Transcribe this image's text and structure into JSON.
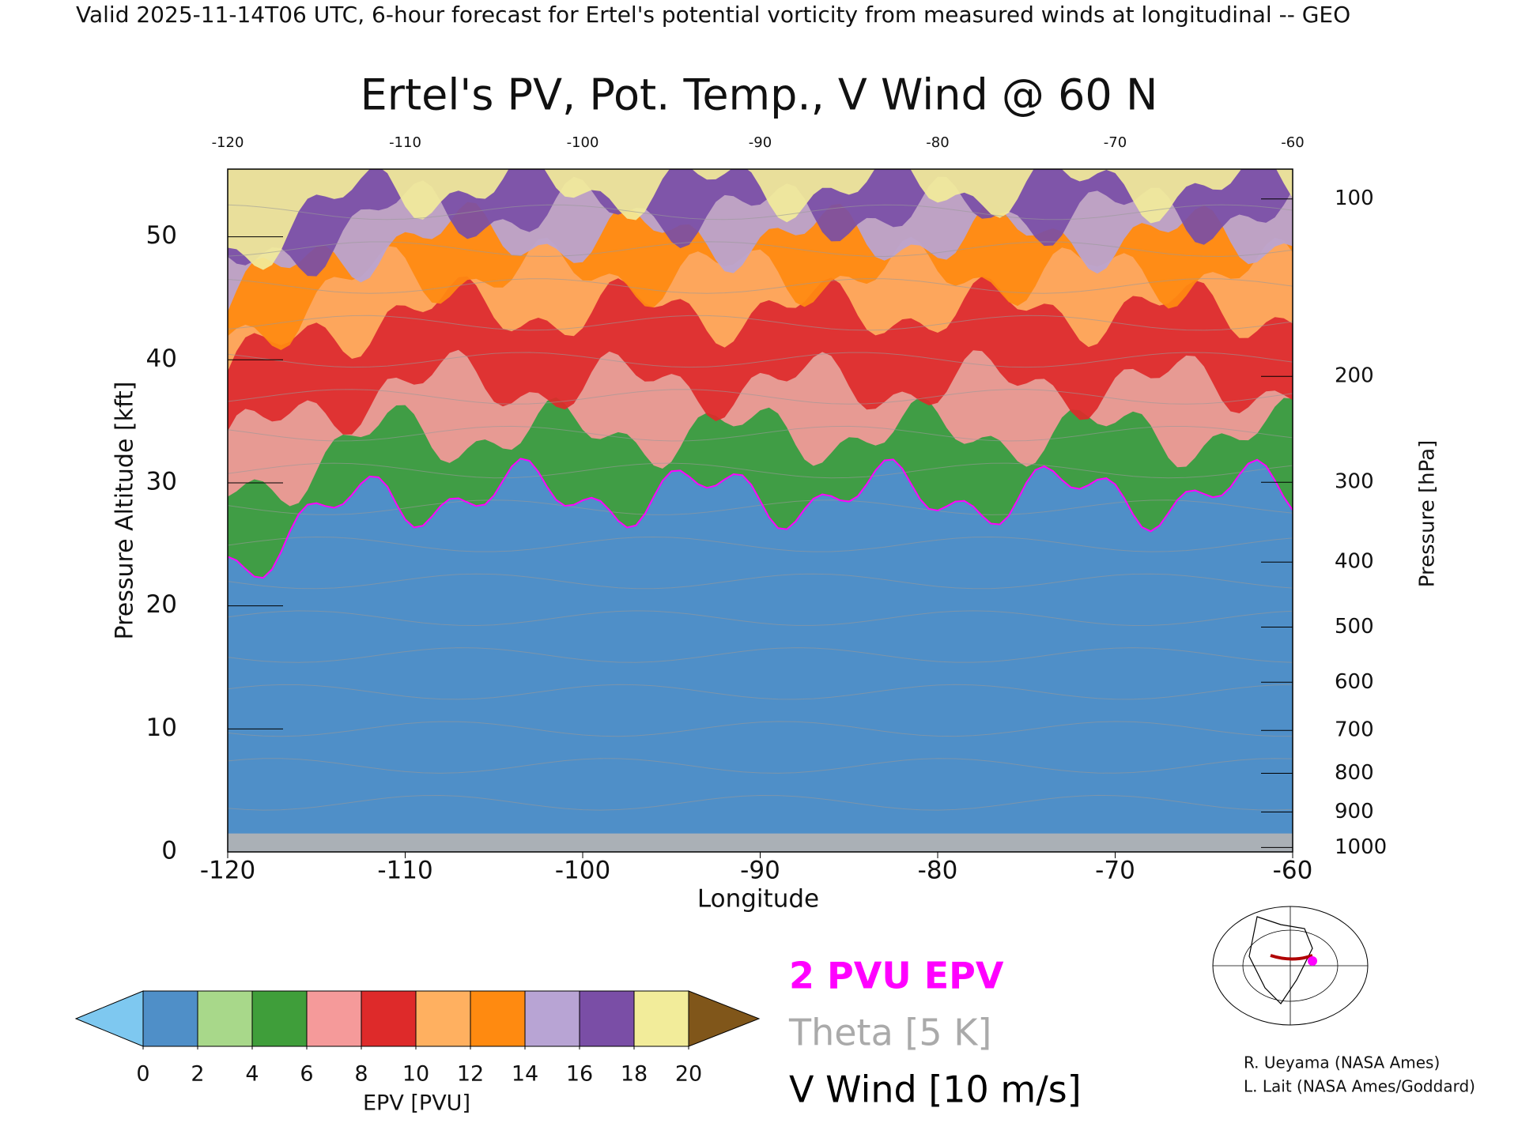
{
  "header": "Valid 2025-11-14T06 UTC, 6-hour forecast for Ertel's potential vorticity from measured winds at longitudinal -- GEO",
  "chart_data": {
    "type": "contour",
    "title": "Ertel's PV, Pot. Temp., V Wind @ 60 N",
    "x_label": "Longitude",
    "y_label": "Pressure Altitude [kft]",
    "y2_label": "Pressure [hPa]",
    "xlim": [
      -120,
      -60
    ],
    "xticks": [
      -120,
      -110,
      -100,
      -90,
      -80,
      -70,
      -60
    ],
    "ylim": [
      0,
      55.5
    ],
    "yticks": [
      0,
      10,
      20,
      30,
      40,
      50
    ],
    "y2lim": [
      1013.25,
      89.0
    ],
    "y2ticks": [
      100,
      200,
      300,
      400,
      500,
      600,
      700,
      800,
      900,
      1000
    ],
    "y2_scale": "pressure",
    "colorbar": {
      "label": "EPV [PVU]",
      "lim": [
        0,
        20
      ],
      "ticks": [
        0,
        2,
        4,
        6,
        8,
        10,
        12,
        14,
        16,
        18,
        20
      ],
      "colors": [
        "#4f8fc8",
        "#a8d88a",
        "#3f9e3a",
        "#f59a9a",
        "#de2a2a",
        "#ffb060",
        "#ff8a10",
        "#b8a4d4",
        "#7a4ea6",
        "#f2ec9a"
      ],
      "under_color": "#7ec8f0",
      "over_color": "#80561a"
    },
    "legend": [
      {
        "label": "2 PVU EPV",
        "color": "#ff00ff"
      },
      {
        "label": "Theta [5 K]",
        "color": "#aaaaaa"
      },
      {
        "label": "V Wind [10 m/s]",
        "color": "#000000"
      }
    ]
  },
  "credits": [
    "R. Ueyama (NASA Ames)",
    "L. Lait (NASA Ames/Goddard)"
  ]
}
